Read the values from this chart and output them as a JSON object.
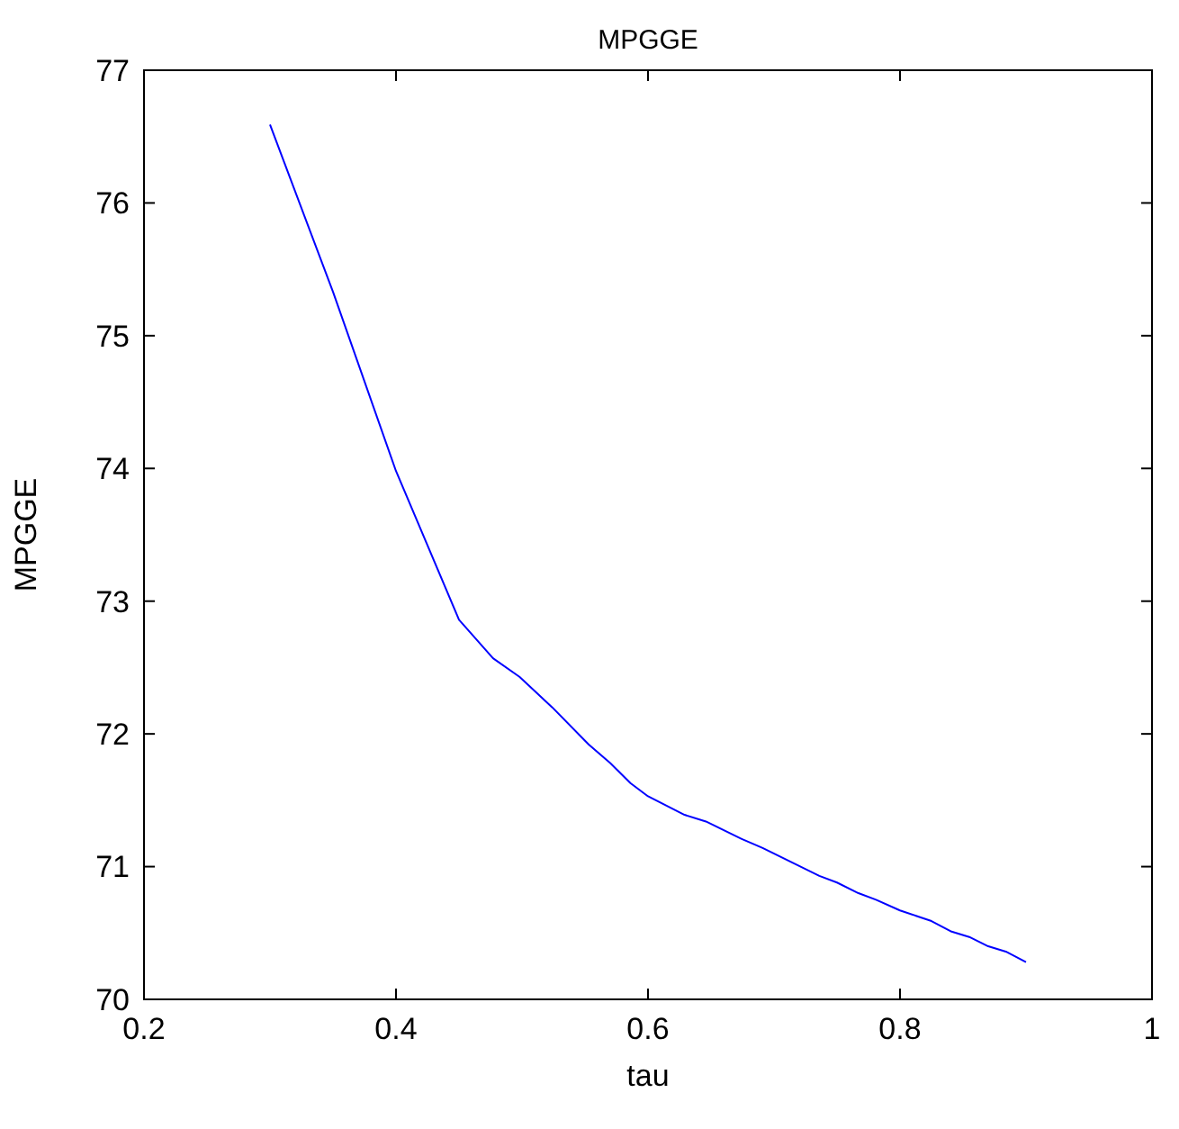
{
  "chart_data": {
    "type": "line",
    "title": "MPGGE",
    "xlabel": "tau",
    "ylabel": "MPGGE",
    "xlim": [
      0.2,
      1
    ],
    "xticks": [
      0.2,
      0.4,
      0.6,
      0.8,
      1
    ],
    "ylim": [
      70,
      77
    ],
    "yticks": [
      70,
      71,
      72,
      73,
      74,
      75,
      76,
      77
    ],
    "grid": false,
    "marker": "none",
    "line_style": "solid",
    "series": [
      {
        "color": "#0000ff",
        "x": [
          0.3,
          0.35,
          0.4,
          0.45,
          0.477,
          0.498,
          0.524,
          0.553,
          0.57,
          0.586,
          0.6,
          0.629,
          0.646,
          0.674,
          0.691,
          0.736,
          0.75,
          0.767,
          0.781,
          0.8,
          0.825,
          0.841,
          0.855,
          0.87,
          0.884,
          0.9
        ],
        "values": [
          76.59,
          75.33,
          73.98,
          72.86,
          72.57,
          72.43,
          72.2,
          71.92,
          71.78,
          71.63,
          71.53,
          71.39,
          71.34,
          71.21,
          71.14,
          70.93,
          70.88,
          70.8,
          70.75,
          70.67,
          70.59,
          70.51,
          70.47,
          70.4,
          70.36,
          70.28
        ]
      }
    ]
  }
}
